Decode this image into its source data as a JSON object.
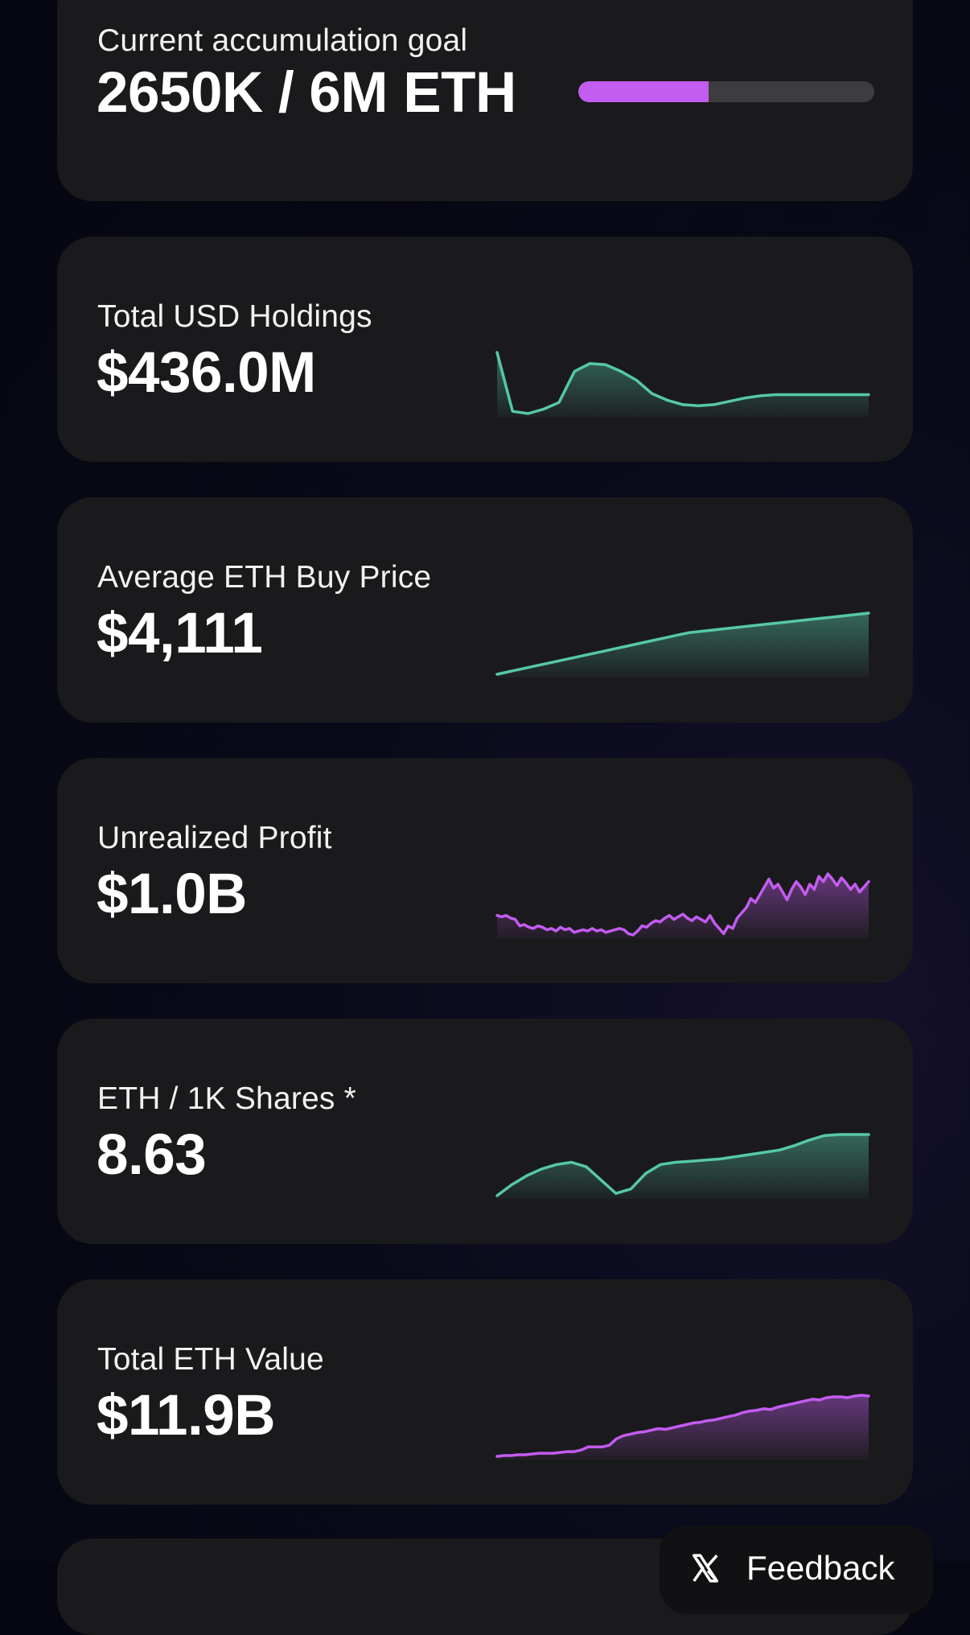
{
  "colors": {
    "accent_purple": "#c35cf0",
    "accent_green": "#56c8a6",
    "card_bg": "#1a1a1c"
  },
  "goal": {
    "label": "Current accumulation goal",
    "value": "2650K / 6M ETH",
    "progress_fraction": 0.44
  },
  "metrics": [
    {
      "label": "Total USD Holdings",
      "value": "$436.0M",
      "color": "#56c8a6",
      "series": [
        95,
        42,
        40,
        44,
        50,
        78,
        85,
        84,
        78,
        70,
        58,
        52,
        48,
        47,
        48,
        51,
        54,
        56,
        57,
        57,
        57,
        57,
        57,
        57,
        57
      ]
    },
    {
      "label": "Average ETH Buy Price",
      "value": "$4,111",
      "color": "#56c8a6",
      "series": [
        50,
        52,
        54,
        56,
        58,
        60,
        62,
        64,
        66,
        68,
        70,
        72,
        74,
        76,
        78,
        80,
        81,
        82,
        83,
        84,
        85,
        86,
        87,
        88,
        89,
        90,
        91,
        92,
        93,
        94
      ]
    },
    {
      "label": "Unrealized Profit",
      "value": "$1.0B",
      "color": "#c35cf0",
      "series": [
        50,
        49,
        50,
        48,
        47,
        42,
        43,
        41,
        40,
        42,
        41,
        39,
        40,
        38,
        41,
        39,
        40,
        37,
        38,
        39,
        38,
        40,
        38,
        39,
        37,
        38,
        39,
        40,
        39,
        36,
        35,
        38,
        42,
        41,
        44,
        46,
        45,
        48,
        50,
        47,
        49,
        51,
        48,
        46,
        49,
        47,
        45,
        50,
        44,
        40,
        36,
        42,
        40,
        48,
        52,
        56,
        63,
        60,
        66,
        72,
        78,
        71,
        74,
        68,
        62,
        70,
        76,
        72,
        66,
        74,
        70,
        80,
        76,
        82,
        78,
        73,
        79,
        75,
        70,
        74,
        68,
        72,
        76
      ]
    },
    {
      "label": "ETH / 1K Shares *",
      "value": "8.63",
      "color": "#56c8a6",
      "series": [
        40,
        50,
        58,
        64,
        68,
        70,
        66,
        54,
        42,
        46,
        60,
        68,
        70,
        71,
        72,
        73,
        75,
        77,
        79,
        81,
        85,
        90,
        94,
        95,
        95,
        95
      ]
    },
    {
      "label": "Total ETH Value",
      "value": "$11.9B",
      "color": "#c35cf0",
      "series": [
        10,
        11,
        11,
        12,
        12,
        13,
        14,
        14,
        14,
        15,
        16,
        16,
        18,
        22,
        22,
        22,
        24,
        32,
        36,
        38,
        40,
        41,
        43,
        45,
        44,
        46,
        48,
        50,
        52,
        53,
        55,
        56,
        58,
        60,
        62,
        65,
        67,
        68,
        70,
        69,
        72,
        74,
        76,
        78,
        80,
        82,
        81,
        84,
        85,
        85,
        84,
        86,
        87,
        86
      ]
    }
  ],
  "feedback": {
    "label": "Feedback"
  }
}
